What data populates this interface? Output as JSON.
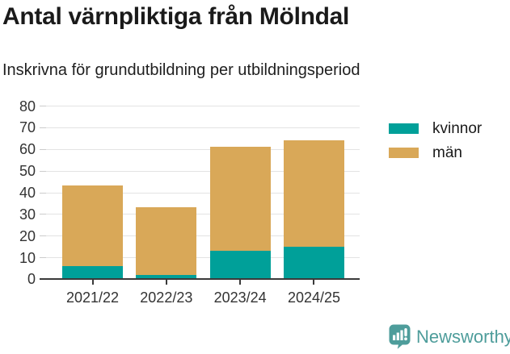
{
  "title": "Antal värnpliktiga från Mölndal",
  "subtitle": "Inskrivna för grundutbildning per utbildningsperiod",
  "chart_data": {
    "type": "bar",
    "stacked": true,
    "title": "Antal värnpliktiga från Mölndal",
    "subtitle": "Inskrivna för grundutbildning per utbildningsperiod",
    "categories": [
      "2021/22",
      "2022/23",
      "2023/24",
      "2024/25"
    ],
    "series": [
      {
        "name": "kvinnor",
        "color": "#00a099",
        "values": [
          6,
          2,
          13,
          15
        ]
      },
      {
        "name": "män",
        "color": "#d9a858",
        "values": [
          37,
          31,
          48,
          49
        ]
      }
    ],
    "totals": [
      43,
      33,
      61,
      64
    ],
    "xlabel": "",
    "ylabel": "",
    "ylim": [
      0,
      80
    ],
    "yticks": [
      0,
      10,
      20,
      30,
      40,
      50,
      60,
      70,
      80
    ],
    "grid": true,
    "legend_position": "right"
  },
  "footer": {
    "brand": "Newsworthy",
    "brand_color": "#4e9d9b",
    "logo_icon": "bar-chart-speech-bubble"
  },
  "colors": {
    "kvinnor": "#00a099",
    "man": "#d9a858",
    "gridline": "#e3e3e3",
    "axis": "#3a3a3a",
    "text": "#1a1a1a"
  }
}
